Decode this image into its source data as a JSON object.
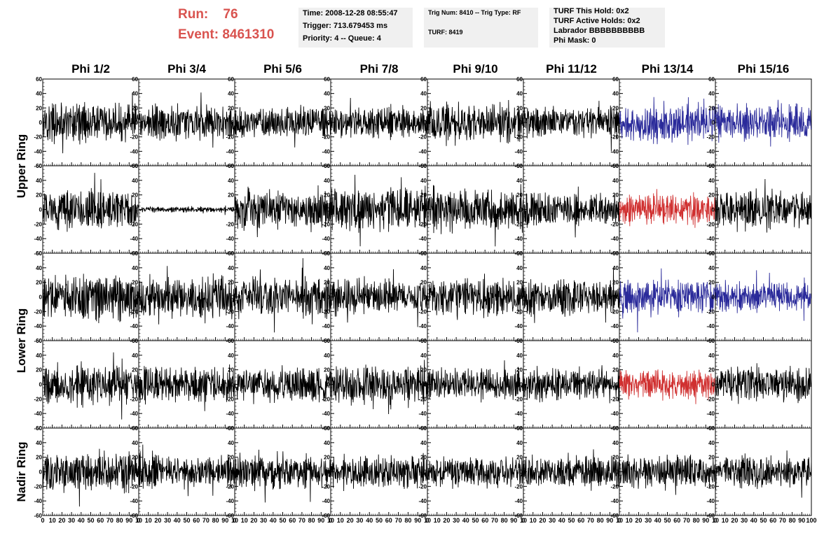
{
  "header": {
    "run_label": "Run:",
    "run_value": "76",
    "event_label": "Event:",
    "event_value": "8461310",
    "run_event_color": "#d9534f",
    "boxes": [
      {
        "lines": [
          "Time: 2008-12-28 08:55:47",
          "Trigger: 713.679453 ms",
          "Priority: 4 -- Queue: 4"
        ]
      },
      {
        "lines": [
          "Trig Num: 8410 -- Trig Type: RF",
          "TURF: 8419"
        ]
      },
      {
        "lines": [
          "TURF This Hold: 0x2",
          "TURF Active Holds: 0x2",
          "Labrador BBBBBBBBBB",
          "Phi Mask: 0"
        ]
      }
    ]
  },
  "chart_data": {
    "type": "line",
    "description_columns": [
      "Phi 1/2",
      "Phi 3/4",
      "Phi 5/6",
      "Phi 7/8",
      "Phi 9/10",
      "Phi 11/12",
      "Phi 13/14",
      "Phi 15/16"
    ],
    "row_labels": [
      {
        "label": "Upper Ring",
        "rows": [
          0,
          1
        ]
      },
      {
        "label": "Lower Ring",
        "rows": [
          2,
          3
        ]
      },
      {
        "label": "Nadir Ring",
        "rows": [
          4
        ]
      }
    ],
    "xlim": [
      0,
      100
    ],
    "ylim": [
      -60,
      60
    ],
    "x_ticks": [
      "0",
      "10",
      "20",
      "30",
      "40",
      "50",
      "60",
      "70",
      "80",
      "90",
      "10"
    ],
    "x_ticks_last": [
      "0",
      "10",
      "20",
      "30",
      "40",
      "50",
      "60",
      "70",
      "80",
      "90",
      "100"
    ],
    "y_ticks": [
      "60",
      "40",
      "20",
      "0",
      "-20",
      "-40",
      "-60"
    ],
    "colors": {
      "default": "#000000",
      "blue": "#2a2a9a",
      "red": "#d03030"
    },
    "panel_colors": [
      [
        "default",
        "default",
        "default",
        "default",
        "default",
        "default",
        "blue",
        "blue"
      ],
      [
        "default",
        "default",
        "default",
        "default",
        "default",
        "default",
        "red",
        "default"
      ],
      [
        "default",
        "default",
        "default",
        "default",
        "default",
        "default",
        "blue",
        "blue"
      ],
      [
        "default",
        "default",
        "default",
        "default",
        "default",
        "default",
        "red",
        "default"
      ],
      [
        "default",
        "default",
        "default",
        "default",
        "default",
        "default",
        "default",
        "default"
      ]
    ],
    "panel_amplitudes": [
      [
        22,
        20,
        18,
        18,
        22,
        18,
        22,
        22
      ],
      [
        22,
        3,
        24,
        26,
        24,
        18,
        18,
        22
      ],
      [
        24,
        24,
        24,
        20,
        20,
        20,
        20,
        16
      ],
      [
        22,
        20,
        20,
        22,
        18,
        18,
        16,
        20
      ],
      [
        22,
        18,
        18,
        18,
        18,
        18,
        18,
        18
      ]
    ],
    "samples_per_trace": 260
  }
}
